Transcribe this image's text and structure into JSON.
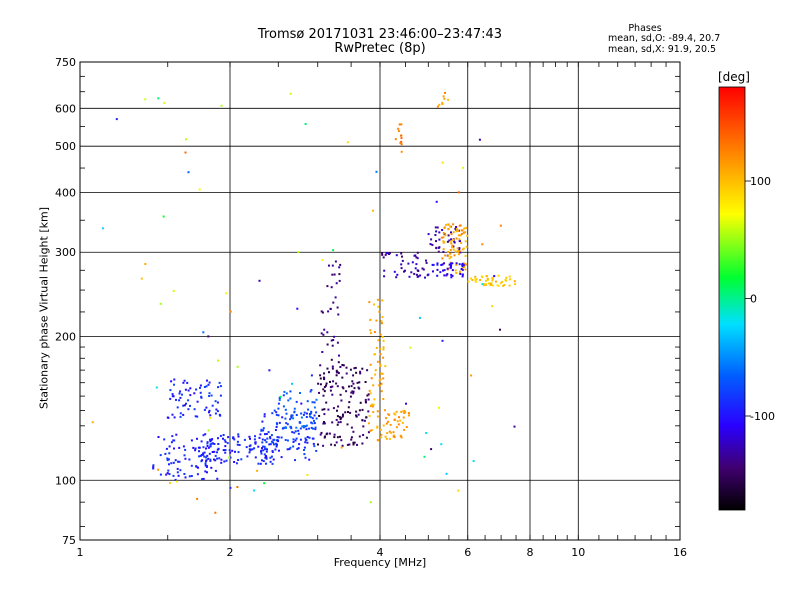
{
  "header": {
    "title_line1": "Tromsø 20171031 23:46:00–23:47:43",
    "title_line2": "RwPretec (8p)"
  },
  "stats": {
    "heading": "Phases",
    "line1": "mean, sd,O: -89.4, 20.7",
    "line2": "mean, sd,X:  91.9, 20.5"
  },
  "colorbar": {
    "label": "[deg]",
    "ticks": [
      {
        "value": 100,
        "label": "100"
      },
      {
        "value": 0,
        "label": "0"
      },
      {
        "value": -100,
        "label": "-100"
      }
    ],
    "range": [
      -180,
      180
    ]
  },
  "chart_data": {
    "type": "scatter",
    "xlabel": "Frequency [MHz]",
    "ylabel": "Stationary phase Virtual Height [km]",
    "x_scale": "log",
    "y_scale": "log",
    "xlim": [
      1,
      16
    ],
    "ylim": [
      75,
      750
    ],
    "x_ticks": [
      1,
      2,
      4,
      6,
      8,
      10,
      16
    ],
    "y_ticks": [
      75,
      100,
      200,
      300,
      400,
      500,
      600,
      750
    ],
    "grid": true,
    "color_encoding": "phase (deg)",
    "clusters": [
      {
        "x_range": [
          1.4,
          1.9
        ],
        "y_range": [
          100,
          125
        ],
        "phase": -95,
        "n": 90
      },
      {
        "x_range": [
          1.75,
          2.5
        ],
        "y_range": [
          108,
          125
        ],
        "phase": -92,
        "n": 120
      },
      {
        "x_range": [
          1.5,
          1.95
        ],
        "y_range": [
          135,
          165
        ],
        "phase": -90,
        "n": 70
      },
      {
        "x_range": [
          2.3,
          3.0
        ],
        "y_range": [
          110,
          140
        ],
        "phase": -85,
        "n": 110
      },
      {
        "x_range": [
          2.5,
          3.0
        ],
        "y_range": [
          128,
          155
        ],
        "phase": -70,
        "n": 50
      },
      {
        "x_range": [
          3.0,
          3.8
        ],
        "y_range": [
          118,
          175
        ],
        "phase": -150,
        "n": 150
      },
      {
        "x_range": [
          3.05,
          3.35
        ],
        "y_range": [
          175,
          290
        ],
        "phase": -140,
        "n": 35
      },
      {
        "x_range": [
          3.8,
          4.1
        ],
        "y_range": [
          120,
          240
        ],
        "phase": 110,
        "n": 70
      },
      {
        "x_range": [
          4.1,
          4.6
        ],
        "y_range": [
          122,
          140
        ],
        "phase": 110,
        "n": 40
      },
      {
        "x_range": [
          4.0,
          5.0
        ],
        "y_range": [
          265,
          300
        ],
        "phase": -130,
        "n": 45
      },
      {
        "x_range": [
          5.0,
          5.8
        ],
        "y_range": [
          295,
          340
        ],
        "phase": -130,
        "n": 40
      },
      {
        "x_range": [
          5.3,
          6.0
        ],
        "y_range": [
          270,
          345
        ],
        "phase": 112,
        "n": 80
      },
      {
        "x_range": [
          5.0,
          5.9
        ],
        "y_range": [
          265,
          285
        ],
        "phase": -110,
        "n": 40
      },
      {
        "x_range": [
          6.0,
          7.5
        ],
        "y_range": [
          255,
          268
        ],
        "phase": 95,
        "n": 45
      },
      {
        "x_range": [
          4.3,
          4.45
        ],
        "y_range": [
          480,
          560
        ],
        "phase": 125,
        "n": 12
      },
      {
        "x_range": [
          5.2,
          5.5
        ],
        "y_range": [
          600,
          650
        ],
        "phase": 115,
        "n": 8
      },
      {
        "x_range": [
          1.05,
          7.5
        ],
        "y_range": [
          85,
          700
        ],
        "phase": "mixed",
        "n": 80
      }
    ]
  }
}
